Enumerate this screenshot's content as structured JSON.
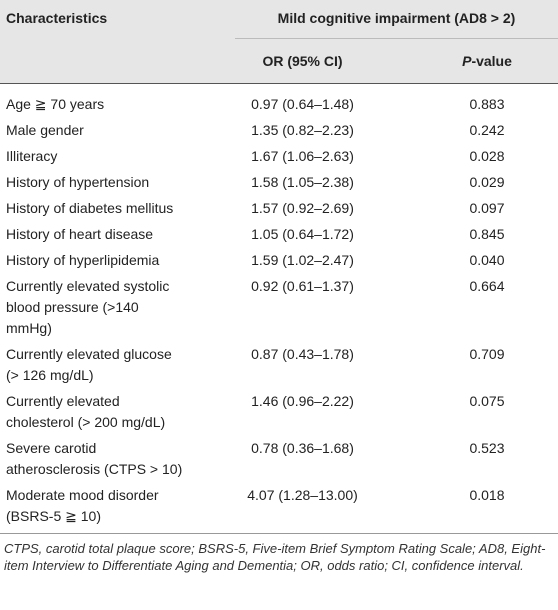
{
  "header": {
    "characteristics": "Characteristics",
    "group": "Mild cognitive impairment (AD8 > 2)",
    "or": "OR (95% CI)",
    "p_value": [
      "P",
      "-value"
    ]
  },
  "rows": [
    {
      "characteristic": [
        "Age ≧ 70 years"
      ],
      "or": "0.97 (0.64–1.48)",
      "p": "0.883"
    },
    {
      "characteristic": [
        "Male gender"
      ],
      "or": "1.35 (0.82–2.23)",
      "p": "0.242"
    },
    {
      "characteristic": [
        "Illiteracy"
      ],
      "or": "1.67 (1.06–2.63)",
      "p": "0.028"
    },
    {
      "characteristic": [
        "History of hypertension"
      ],
      "or": "1.58 (1.05–2.38)",
      "p": "0.029"
    },
    {
      "characteristic": [
        "History of diabetes mellitus"
      ],
      "or": "1.57 (0.92–2.69)",
      "p": "0.097"
    },
    {
      "characteristic": [
        "History of heart disease"
      ],
      "or": "1.05 (0.64–1.72)",
      "p": "0.845"
    },
    {
      "characteristic": [
        "History of hyperlipidemia"
      ],
      "or": "1.59 (1.02–2.47)",
      "p": "0.040"
    },
    {
      "characteristic": [
        "Currently elevated systolic",
        "blood pressure (>140",
        "mmHg)"
      ],
      "or": "0.92 (0.61–1.37)",
      "p": "0.664"
    },
    {
      "characteristic": [
        "Currently elevated glucose",
        "(> 126 mg/dL)"
      ],
      "or": "0.87 (0.43–1.78)",
      "p": "0.709"
    },
    {
      "characteristic": [
        "Currently elevated",
        "cholesterol (> 200 mg/dL)"
      ],
      "or": "1.46 (0.96–2.22)",
      "p": "0.075"
    },
    {
      "characteristic": [
        "Severe carotid",
        "atherosclerosis (CTPS > 10)"
      ],
      "or": "0.78 (0.36–1.68)",
      "p": "0.523"
    },
    {
      "characteristic": [
        "Moderate mood disorder",
        "(BSRS-5 ≧ 10)"
      ],
      "or": "4.07 (1.28–13.00)",
      "p": "0.018"
    }
  ],
  "footnote": "CTPS, carotid total plaque score; BSRS-5, Five-item Brief Symptom Rating Scale; AD8, Eight-item Interview to Differentiate Aging and Dementia; OR, odds ratio; CI, confidence interval."
}
